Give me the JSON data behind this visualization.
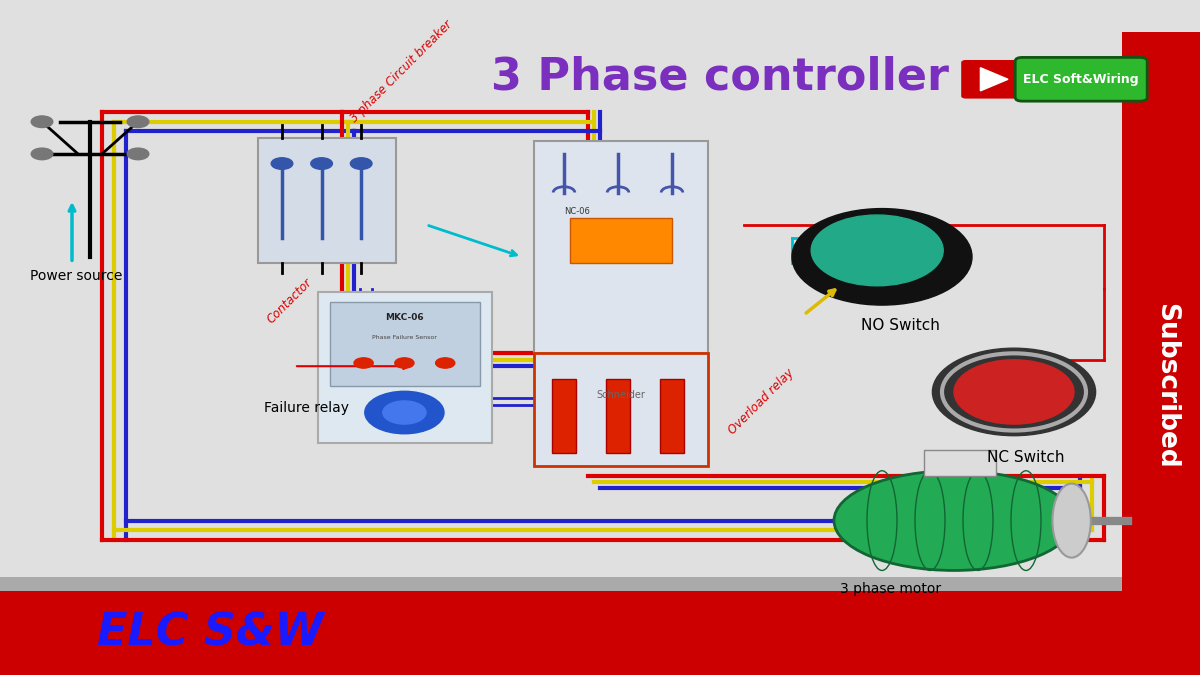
{
  "title": "3 Phase controller",
  "title_color": "#7B2FBE",
  "title_fontsize": 32,
  "bg_color": "#e0e0e0",
  "bottom_bar_color": "#cc0000",
  "bottom_bar_height": 0.13,
  "footer_text": "ELC S&W",
  "footer_color": "#1a1aff",
  "right_bar_color": "#cc0000",
  "right_bar_width": 0.065,
  "subscribed_text": "Subscribed",
  "subscribed_color": "#ffffff",
  "youtube_btn_color": "#cc0000",
  "elc_btn_color": "#2db82d",
  "elc_btn_text": "ELC Soft&Wiring",
  "labels": {
    "power_source": "Power source",
    "circuit_breaker": "3 phase Circuit breaker",
    "contactor_label": "Contactor",
    "failure_relay": "Failure relay",
    "overload_relay": "Overload relay",
    "no_switch": "NO Switch",
    "nc_switch": "NC Switch",
    "motor": "3 phase motor"
  },
  "wire_red": "#dd0000",
  "wire_blue": "#2222cc",
  "wire_yellow": "#ddcc00",
  "wire_cyan": "#00bbcc",
  "lw": 3
}
